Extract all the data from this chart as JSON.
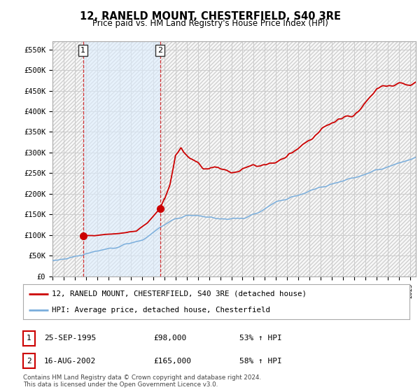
{
  "title": "12, RANELD MOUNT, CHESTERFIELD, S40 3RE",
  "subtitle": "Price paid vs. HM Land Registry's House Price Index (HPI)",
  "ylim": [
    0,
    570000
  ],
  "yticks": [
    0,
    50000,
    100000,
    150000,
    200000,
    250000,
    300000,
    350000,
    400000,
    450000,
    500000,
    550000
  ],
  "ytick_labels": [
    "£0",
    "£50K",
    "£100K",
    "£150K",
    "£200K",
    "£250K",
    "£300K",
    "£350K",
    "£400K",
    "£450K",
    "£500K",
    "£550K"
  ],
  "purchase_color": "#cc0000",
  "hpi_color": "#7aaedc",
  "purchase_marker_color": "#cc0000",
  "grid_color": "#cccccc",
  "hatch_color": "#d8d8d8",
  "purchase1_date": 1995.73,
  "purchase1_price": 98000,
  "purchase2_date": 2002.62,
  "purchase2_price": 165000,
  "legend_purchase_label": "12, RANELD MOUNT, CHESTERFIELD, S40 3RE (detached house)",
  "legend_hpi_label": "HPI: Average price, detached house, Chesterfield",
  "table_row1": [
    "1",
    "25-SEP-1995",
    "£98,000",
    "53% ↑ HPI"
  ],
  "table_row2": [
    "2",
    "16-AUG-2002",
    "£165,000",
    "58% ↑ HPI"
  ],
  "footer": "Contains HM Land Registry data © Crown copyright and database right 2024.\nThis data is licensed under the Open Government Licence v3.0.",
  "xstart": 1993.0,
  "xend": 2025.5
}
